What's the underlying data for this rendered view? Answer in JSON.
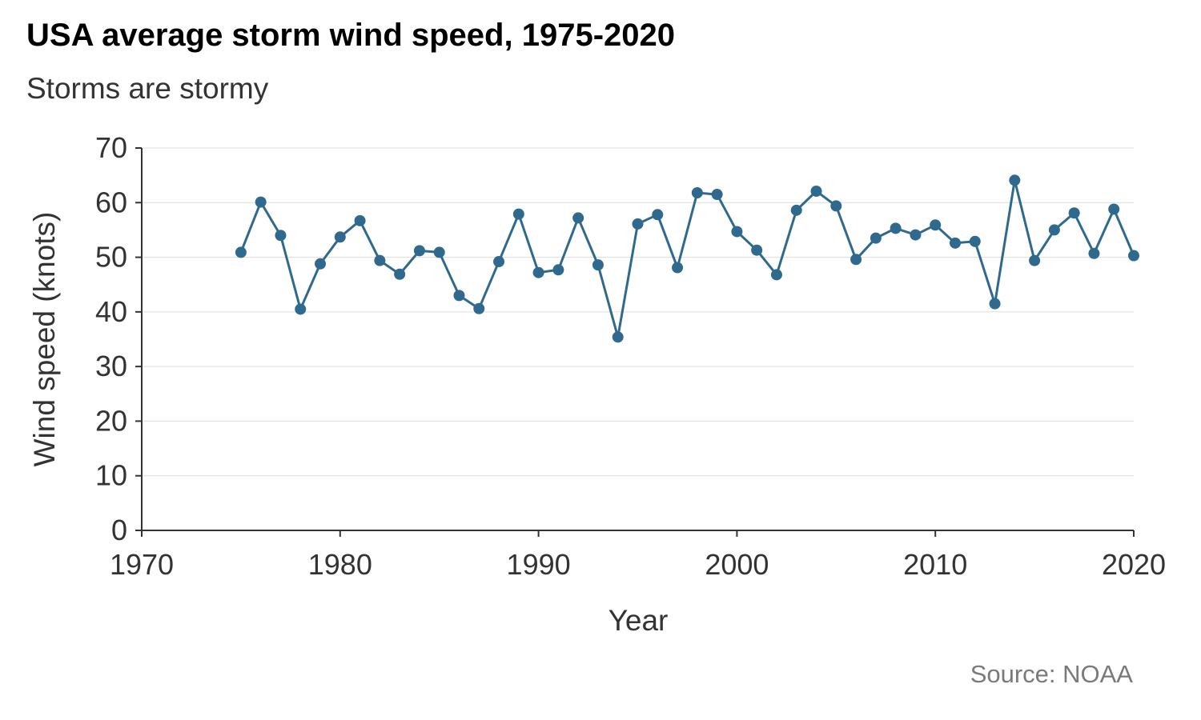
{
  "title": "USA average storm wind speed, 1975-2020",
  "subtitle": "Storms are stormy",
  "caption": "Source: NOAA",
  "chart_data": {
    "type": "line",
    "title": "USA average storm wind speed, 1975-2020",
    "subtitle": "Storms are stormy",
    "xlabel": "Year",
    "ylabel": "Wind speed (knots)",
    "xlim": [
      1970,
      2020
    ],
    "ylim": [
      0,
      70
    ],
    "x_ticks": [
      1970,
      1980,
      1990,
      2000,
      2010,
      2020
    ],
    "y_ticks": [
      0,
      10,
      20,
      30,
      40,
      50,
      60,
      70
    ],
    "grid": "horizontal major",
    "color": "#2f6a8e",
    "markers": true,
    "x": [
      1975,
      1976,
      1977,
      1978,
      1979,
      1980,
      1981,
      1982,
      1983,
      1984,
      1985,
      1986,
      1987,
      1988,
      1989,
      1990,
      1991,
      1992,
      1993,
      1994,
      1995,
      1996,
      1997,
      1998,
      1999,
      2000,
      2001,
      2002,
      2003,
      2004,
      2005,
      2006,
      2007,
      2008,
      2009,
      2010,
      2011,
      2012,
      2013,
      2014,
      2015,
      2016,
      2017,
      2018,
      2019,
      2020
    ],
    "y": [
      50.9,
      60.1,
      54.0,
      40.5,
      48.8,
      53.7,
      56.7,
      49.4,
      46.9,
      51.2,
      50.9,
      43.0,
      40.6,
      49.2,
      57.9,
      47.2,
      47.7,
      57.2,
      48.6,
      35.4,
      56.1,
      57.8,
      48.1,
      61.8,
      61.5,
      54.7,
      51.3,
      46.8,
      58.6,
      62.1,
      59.4,
      49.6,
      53.5,
      55.3,
      54.1,
      55.9,
      52.6,
      52.9,
      41.5,
      64.1,
      49.4,
      55.0,
      58.1,
      50.7,
      58.8,
      50.3
    ]
  }
}
